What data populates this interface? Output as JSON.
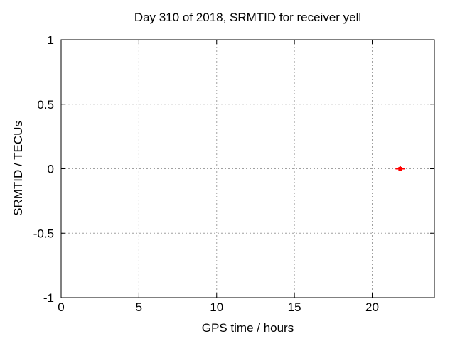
{
  "window": {
    "background": "#ffffff"
  },
  "chart_data": {
    "type": "scatter",
    "title": "Day 310 of 2018, SRMTID for receiver yell",
    "xlabel": "GPS time / hours",
    "ylabel": "SRMTID / TECUs",
    "xlim": [
      0,
      24
    ],
    "ylim": [
      -1,
      1
    ],
    "xticks": [
      0,
      5,
      10,
      15,
      20
    ],
    "xtick_labels": [
      "0",
      "5",
      "10",
      "15",
      "20"
    ],
    "yticks": [
      -1,
      -0.5,
      0,
      0.5,
      1
    ],
    "ytick_labels": [
      "-1",
      "-0.5",
      "0",
      "0.5",
      "1"
    ],
    "grid": true,
    "grid_style": "dotted",
    "grid_color": "#a0a0a0",
    "axis_color": "#000000",
    "legend": "none",
    "series": [
      {
        "name": "SRMTID",
        "marker": "filled-square-plus",
        "color": "#ff0000",
        "points": [
          {
            "x": 21.8,
            "y": 0.0
          }
        ]
      }
    ]
  }
}
